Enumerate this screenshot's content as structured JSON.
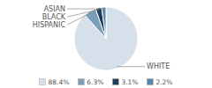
{
  "chart_data": {
    "type": "pie",
    "categories": [
      "WHITE",
      "HISPANIC",
      "BLACK",
      "ASIAN"
    ],
    "values": [
      88.4,
      6.3,
      3.1,
      2.2
    ],
    "value_labels": [
      "88.4%",
      "6.3%",
      "3.1%",
      "2.2%"
    ],
    "colors": [
      "#d6e0ea",
      "#7a9db8",
      "#1f3d5c",
      "#5b88a8"
    ],
    "legend": "bottom"
  }
}
